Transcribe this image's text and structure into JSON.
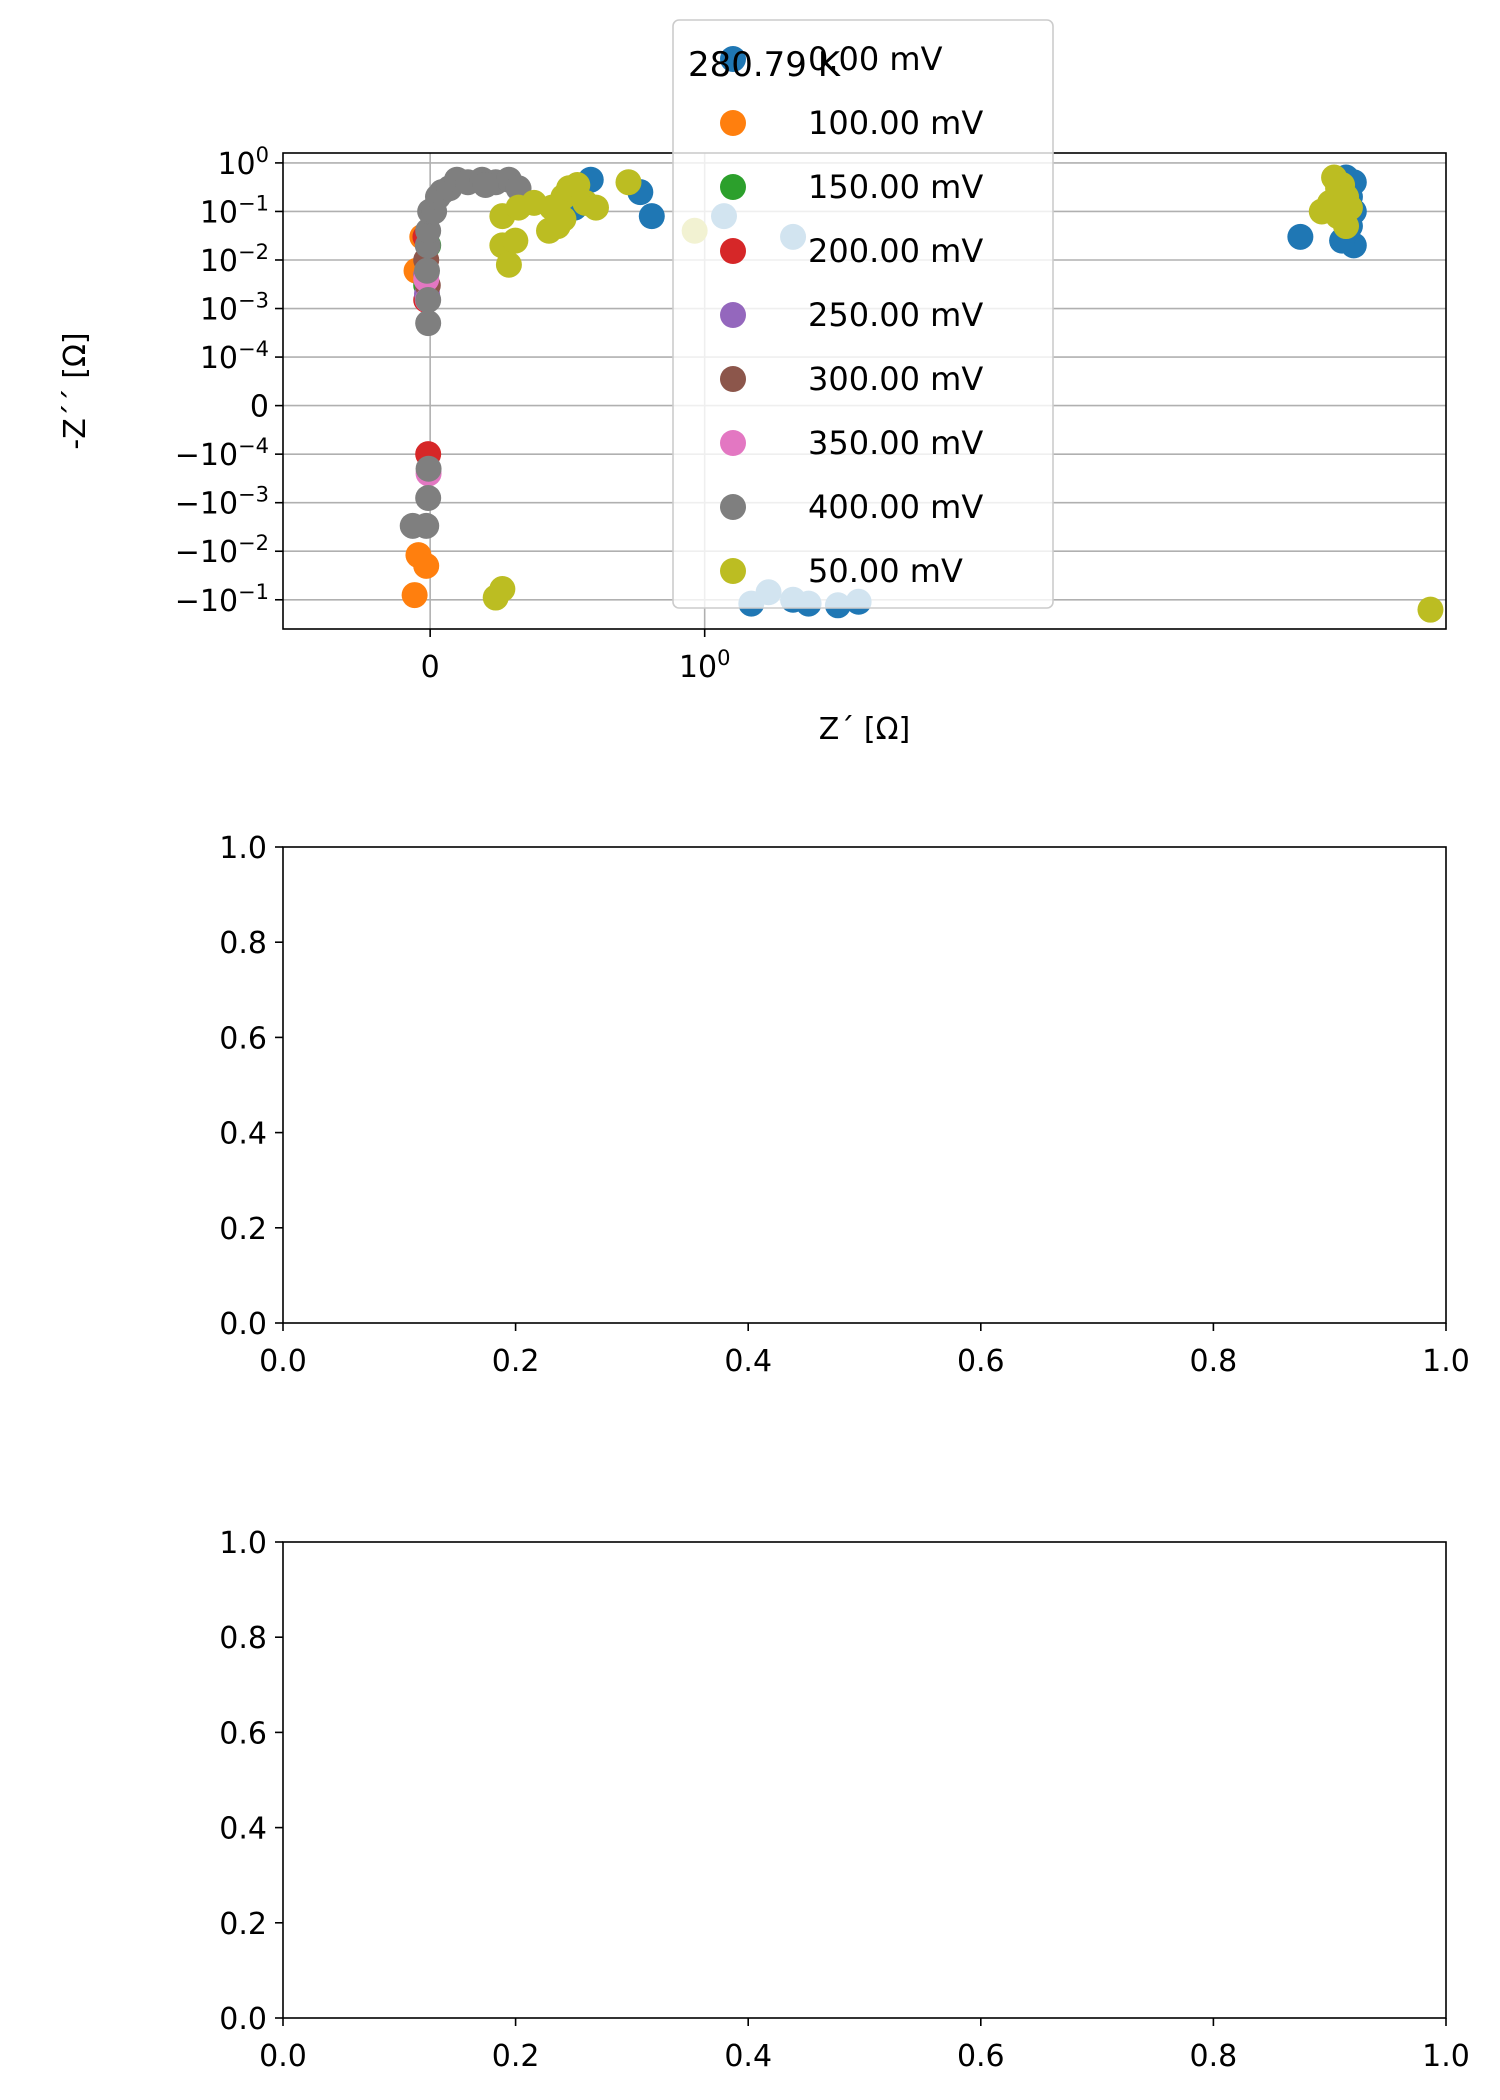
{
  "figure": {
    "background": "#ffffff"
  },
  "chart_data": [
    {
      "type": "scatter",
      "title": "280.79 K",
      "xlabel": "Z´ [Ω]",
      "ylabel": "-Z´´ [Ω]",
      "xscale": "symlog",
      "yscale": "symlog",
      "xlim": [
        -0.45,
        12
      ],
      "x_ticks": [
        {
          "value": 0,
          "label": "0"
        },
        {
          "value": 1,
          "label": "10^0"
        }
      ],
      "y_ticks": [
        {
          "value": 1,
          "label": "10^0"
        },
        {
          "value": 0.1,
          "label": "10^−1"
        },
        {
          "value": 0.01,
          "label": "10^−2"
        },
        {
          "value": 0.001,
          "label": "10^−3"
        },
        {
          "value": 0.0001,
          "label": "10^−4"
        },
        {
          "value": 0,
          "label": "0"
        },
        {
          "value": -0.0001,
          "label": "−10^−4"
        },
        {
          "value": -0.001,
          "label": "−10^−3"
        },
        {
          "value": -0.01,
          "label": "−10^−2"
        },
        {
          "value": -0.1,
          "label": "−10^−1"
        }
      ],
      "grid": true,
      "legend": {
        "placement": "top-center"
      },
      "series": [
        {
          "name": "0.00 mV",
          "color": "#1f77b4",
          "points": [
            [
              0.45,
              0.3
            ],
            [
              0.5,
              0.45
            ],
            [
              0.42,
              0.2
            ],
            [
              0.44,
              0.12
            ],
            [
              0.7,
              0.25
            ],
            [
              0.75,
              0.08
            ],
            [
              1.1,
              0.08
            ],
            [
              1.5,
              0.03
            ],
            [
              1.35,
              -0.07
            ],
            [
              1.5,
              -0.1
            ],
            [
              1.25,
              -0.12
            ],
            [
              1.6,
              -0.12
            ],
            [
              1.8,
              -0.13
            ],
            [
              1.95,
              -0.11
            ],
            [
              8.0,
              0.03
            ],
            [
              9.1,
              0.5
            ],
            [
              9.3,
              0.4
            ],
            [
              9.2,
              0.2
            ],
            [
              9.3,
              0.1
            ],
            [
              9.2,
              0.05
            ],
            [
              9.3,
              0.02
            ],
            [
              9.0,
              0.025
            ]
          ]
        },
        {
          "name": "100.00 mV",
          "color": "#ff7f0e",
          "points": [
            [
              -0.04,
              -0.08
            ],
            [
              -0.03,
              -0.012
            ],
            [
              -0.01,
              -0.02
            ],
            [
              -0.035,
              0.006
            ],
            [
              -0.02,
              0.03
            ]
          ]
        },
        {
          "name": "150.00 mV",
          "color": "#2ca02c",
          "points": [
            [
              -0.01,
              0.003
            ],
            [
              -0.005,
              0.02
            ]
          ]
        },
        {
          "name": "200.00 mV",
          "color": "#d62728",
          "points": [
            [
              -0.005,
              -0.0001
            ],
            [
              -0.01,
              0.0015
            ],
            [
              -0.012,
              0.03
            ]
          ]
        },
        {
          "name": "250.00 mV",
          "color": "#9467bd",
          "points": [
            [
              -0.008,
              0.002
            ],
            [
              -0.01,
              0.005
            ]
          ]
        },
        {
          "name": "300.00 mV",
          "color": "#8c564b",
          "points": [
            [
              -0.006,
              0.003
            ],
            [
              -0.01,
              0.01
            ]
          ]
        },
        {
          "name": "350.00 mV",
          "color": "#e377c2",
          "points": [
            [
              -0.004,
              -0.00025
            ],
            [
              -0.01,
              0.004
            ],
            [
              -0.006,
              0.0015
            ]
          ]
        },
        {
          "name": "400.00 mV",
          "color": "#7f7f7f",
          "points": [
            [
              -0.045,
              -0.003
            ],
            [
              -0.01,
              -0.003
            ],
            [
              -0.005,
              -0.0008
            ],
            [
              -0.004,
              -0.0002
            ],
            [
              -0.005,
              0.0005
            ],
            [
              -0.005,
              0.0015
            ],
            [
              -0.008,
              0.006
            ],
            [
              -0.006,
              0.02
            ],
            [
              -0.005,
              0.04
            ],
            [
              0.0,
              0.1
            ],
            [
              0.01,
              0.1
            ],
            [
              0.02,
              0.2
            ],
            [
              0.03,
              0.25
            ],
            [
              0.05,
              0.3
            ],
            [
              0.07,
              0.45
            ],
            [
              0.1,
              0.4
            ],
            [
              0.14,
              0.45
            ],
            [
              0.18,
              0.4
            ],
            [
              0.22,
              0.45
            ],
            [
              0.15,
              0.35
            ],
            [
              0.25,
              0.3
            ]
          ]
        },
        {
          "name": "50.00 mV",
          "color": "#bcbd22",
          "points": [
            [
              0.18,
              -0.09
            ],
            [
              0.2,
              -0.06
            ],
            [
              0.2,
              0.02
            ],
            [
              0.22,
              0.008
            ],
            [
              0.24,
              0.025
            ],
            [
              0.2,
              0.08
            ],
            [
              0.25,
              0.12
            ],
            [
              0.3,
              0.15
            ],
            [
              0.35,
              0.04
            ],
            [
              0.38,
              0.05
            ],
            [
              0.4,
              0.07
            ],
            [
              0.36,
              0.12
            ],
            [
              0.4,
              0.2
            ],
            [
              0.42,
              0.3
            ],
            [
              0.45,
              0.35
            ],
            [
              0.48,
              0.15
            ],
            [
              0.52,
              0.12
            ],
            [
              0.65,
              0.4
            ],
            [
              0.95,
              0.04
            ],
            [
              11.5,
              -0.16
            ],
            [
              8.5,
              0.1
            ],
            [
              8.7,
              0.15
            ],
            [
              8.9,
              0.3
            ],
            [
              8.8,
              0.5
            ],
            [
              9.0,
              0.35
            ],
            [
              8.9,
              0.08
            ],
            [
              9.1,
              0.05
            ],
            [
              9.2,
              0.12
            ],
            [
              9.1,
              0.2
            ],
            [
              8.9,
              0.12
            ]
          ]
        }
      ]
    },
    {
      "type": "scatter",
      "title": "",
      "xlabel": "",
      "ylabel": "",
      "xlim": [
        0,
        1
      ],
      "ylim": [
        0,
        1
      ],
      "x_ticks": [
        "0.0",
        "0.2",
        "0.4",
        "0.6",
        "0.8",
        "1.0"
      ],
      "y_ticks": [
        "0.0",
        "0.2",
        "0.4",
        "0.6",
        "0.8",
        "1.0"
      ],
      "grid": false,
      "series": []
    },
    {
      "type": "scatter",
      "title": "",
      "xlabel": "",
      "ylabel": "",
      "xlim": [
        0,
        1
      ],
      "ylim": [
        0,
        1
      ],
      "x_ticks": [
        "0.0",
        "0.2",
        "0.4",
        "0.6",
        "0.8",
        "1.0"
      ],
      "y_ticks": [
        "0.0",
        "0.2",
        "0.4",
        "0.6",
        "0.8",
        "1.0"
      ],
      "grid": false,
      "series": []
    }
  ]
}
